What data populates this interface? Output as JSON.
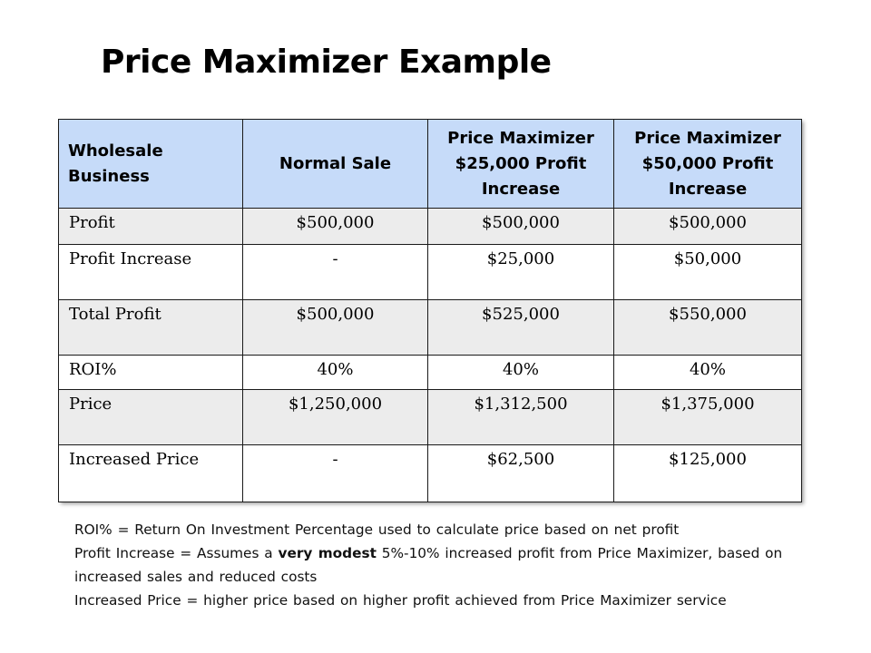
{
  "slide": {
    "title": "Price Maximizer Example"
  },
  "table": {
    "headers": [
      "Wholesale Business",
      "Normal Sale",
      "Price Maximizer $25,000 Profit Increase",
      "Price Maximizer $50,000 Profit Increase"
    ],
    "rows": [
      [
        "Profit",
        "$500,000",
        "$500,000",
        "$500,000"
      ],
      [
        "Profit Increase",
        "-",
        "$25,000",
        "$50,000"
      ],
      [
        "Total Profit",
        "$500,000",
        "$525,000",
        "$550,000"
      ],
      [
        "ROI%",
        "40%",
        "40%",
        "40%"
      ],
      [
        "Price",
        "$1,250,000",
        "$1,312,500",
        "$1,375,000"
      ],
      [
        "Increased Price",
        "-",
        "$62,500",
        "$125,000"
      ]
    ]
  },
  "notes": {
    "line1": "ROI% = Return On Investment Percentage used to calculate price based on net profit",
    "line2_before": "Profit Increase = Assumes a ",
    "line2_bold": "very modest",
    "line2_after": " 5%-10%  increased profit from Price Maximizer, based on increased sales and reduced costs",
    "line3": "Increased Price = higher price based on higher profit achieved from Price Maximizer service"
  },
  "colors": {
    "header_bg": "#c6dbf9",
    "row_shade": "#ececec",
    "border": "#1a1a1a"
  }
}
